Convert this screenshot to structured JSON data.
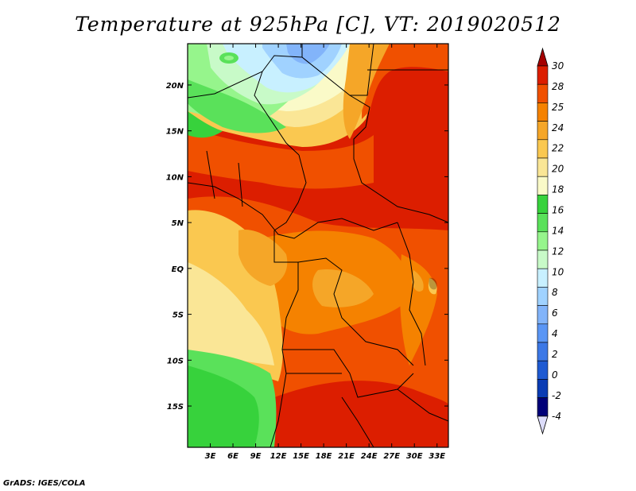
{
  "title": "Temperature at 925hPa [C], VT: 2019020512",
  "footer": "GrADS: IGES/COLA",
  "map": {
    "lon_range": [
      0,
      34.5
    ],
    "lat_range": [
      -19.5,
      24.5
    ],
    "x_ticks": [
      {
        "lon": 3,
        "label": "3E"
      },
      {
        "lon": 6,
        "label": "6E"
      },
      {
        "lon": 9,
        "label": "9E"
      },
      {
        "lon": 12,
        "label": "12E"
      },
      {
        "lon": 15,
        "label": "15E"
      },
      {
        "lon": 18,
        "label": "18E"
      },
      {
        "lon": 21,
        "label": "21E"
      },
      {
        "lon": 24,
        "label": "24E"
      },
      {
        "lon": 27,
        "label": "27E"
      },
      {
        "lon": 30,
        "label": "30E"
      },
      {
        "lon": 33,
        "label": "33E"
      }
    ],
    "y_ticks": [
      {
        "lat": 20,
        "label": "20N"
      },
      {
        "lat": 15,
        "label": "15N"
      },
      {
        "lat": 10,
        "label": "10N"
      },
      {
        "lat": 5,
        "label": "5N"
      },
      {
        "lat": 0,
        "label": "EQ"
      },
      {
        "lat": -5,
        "label": "5S"
      },
      {
        "lat": -10,
        "label": "10S"
      },
      {
        "lat": -15,
        "label": "15S"
      }
    ]
  },
  "colorbar": {
    "labels": [
      "30",
      "28",
      "25",
      "24",
      "22",
      "20",
      "18",
      "16",
      "14",
      "12",
      "10",
      "8",
      "6",
      "4",
      "2",
      "0",
      "-2",
      "-4"
    ],
    "colors": [
      "#a50000",
      "#dc1e00",
      "#f05000",
      "#f58200",
      "#f5a628",
      "#fac850",
      "#fae696",
      "#fafac8",
      "#37d23c",
      "#5ae15a",
      "#96f58c",
      "#c8fac8",
      "#c8f0ff",
      "#a0d2ff",
      "#82b4fa",
      "#5a96f5",
      "#3c78e6",
      "#1e5ad2",
      "#0a3cb4",
      "#000078",
      "#dcdcfa"
    ]
  },
  "palette": {
    "t30": "#dc1e00",
    "t28": "#f05000",
    "t25": "#f58200",
    "t24": "#f5a628",
    "t22": "#fac850",
    "t20": "#fae696",
    "t18": "#fafac8",
    "t16": "#37d23c",
    "t14": "#5ae15a",
    "t12": "#96f58c",
    "t10": "#c8fac8",
    "t8": "#c8f0ff",
    "t6": "#a0d2ff",
    "t4": "#82b4fa"
  }
}
